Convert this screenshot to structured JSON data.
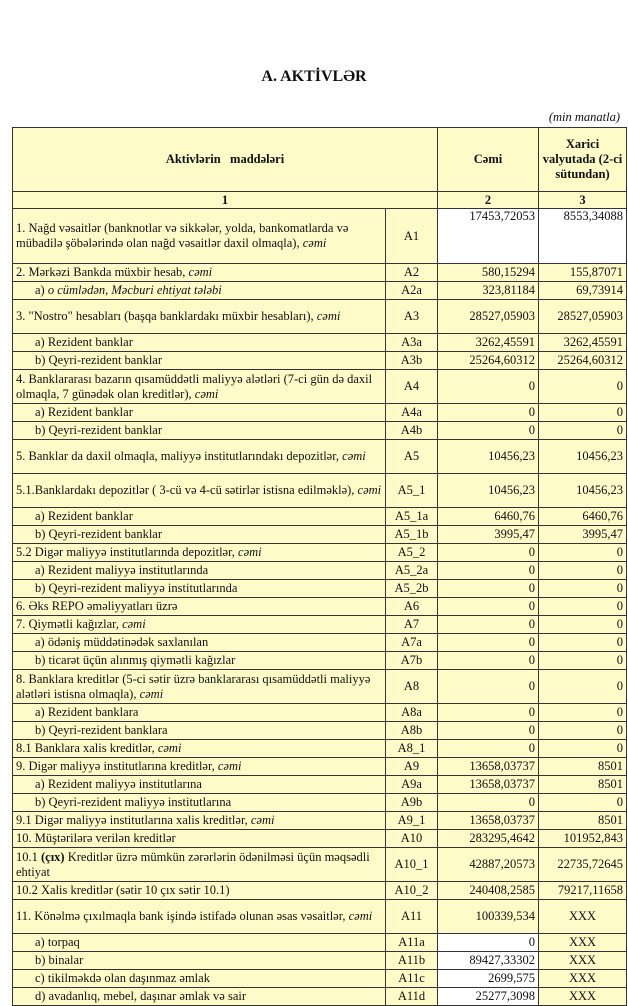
{
  "title": "A. AKTİVLƏR",
  "unit": "(min manatla)",
  "header": {
    "col1": "Aktivlərin   maddələri",
    "col2": "Cəmi",
    "col3": "Xarici valyutada (2-ci sütundan)",
    "num1": "1",
    "num2": "2",
    "num3": "3"
  },
  "rows": [
    {
      "pre": "1. Nağd vəsaitlər (banknotlar və sikkələr, yolda, bankomatlarda və mübadilə şöbələrində olan nağd vəsaitlər daxil olmaqla), ",
      "em": "cəmi",
      "code": "A1",
      "total": "17453,72053",
      "fx": "8553,34088"
    },
    {
      "pre": "2. Mərkəzi Bankda müxbir hesab, ",
      "em": "cəmi",
      "code": "A2",
      "total": "580,15294",
      "fx": "155,87071"
    },
    {
      "pre": "a) ",
      "em": "o cümlədən, Məcburi ehtiyat tələbi",
      "code": "A2a",
      "total": "323,81184",
      "fx": "69,73914",
      "sub": true
    },
    {
      "pre": "3. \"Nostro\" hesabları (başqa banklardakı müxbir hesabları), ",
      "em": "cəmi",
      "code": "A3",
      "total": "28527,05903",
      "fx": "28527,05903"
    },
    {
      "pre": "a) Rezident banklar",
      "code": "A3a",
      "total": "3262,45591",
      "fx": "3262,45591",
      "sub": true
    },
    {
      "pre": "b) Qeyri-rezident banklar",
      "code": "A3b",
      "total": "25264,60312",
      "fx": "25264,60312",
      "sub": true
    },
    {
      "pre": "4. Banklararası bazarın qısamüddətli maliyyə alətləri (7-ci gün də daxil olmaqla, 7 günədək olan kreditlər), ",
      "em": "cəmi",
      "code": "A4",
      "total": "0",
      "fx": "0"
    },
    {
      "pre": "a) Rezident banklar",
      "code": "A4a",
      "total": "0",
      "fx": "0",
      "sub": true
    },
    {
      "pre": "b) Qeyri-rezident banklar",
      "code": "A4b",
      "total": "0",
      "fx": "0",
      "sub": true
    },
    {
      "pre": "5. Banklar da daxil olmaqla, maliyyə institutlarındakı depozitlər, ",
      "em": "cəmi",
      "code": "A5",
      "total": "10456,23",
      "fx": "10456,23"
    },
    {
      "pre": "5.1.Banklardakı depozitlər ( 3-cü və 4-cü sətirlər istisna edilməklə), ",
      "em": "cəmi",
      "code": "A5_1",
      "total": "10456,23",
      "fx": "10456,23"
    },
    {
      "pre": "a) Rezident banklar",
      "code": "A5_1a",
      "total": "6460,76",
      "fx": "6460,76",
      "sub": true
    },
    {
      "pre": "b) Qeyri-rezident banklar",
      "code": "A5_1b",
      "total": "3995,47",
      "fx": "3995,47",
      "sub": true
    },
    {
      "pre": "5.2 Digər maliyyə institutlarında depozitlər, ",
      "em": "cəmi",
      "code": "A5_2",
      "total": "0",
      "fx": "0"
    },
    {
      "pre": "a) Rezident maliyyə institutlarında",
      "code": "A5_2a",
      "total": "0",
      "fx": "0",
      "sub": true
    },
    {
      "pre": "b) Qeyri-rezident maliyyə institutlarında",
      "code": "A5_2b",
      "total": "0",
      "fx": "0",
      "sub": true
    },
    {
      "pre": "6. Əks REPO əməliyyatları üzrə",
      "code": "A6",
      "total": "0",
      "fx": "0"
    },
    {
      "pre": "7. Qiymətli kağızlar, ",
      "em": "cəmi",
      "code": "A7",
      "total": "0",
      "fx": "0"
    },
    {
      "pre": "a) ödəniş müddətinədək saxlanılan",
      "code": "A7a",
      "total": "0",
      "fx": "0",
      "sub": true
    },
    {
      "pre": "b) ticarət üçün alınmış qiymətli kağızlar",
      "code": "A7b",
      "total": "0",
      "fx": "0",
      "sub": true
    },
    {
      "pre": "8. Banklara kreditlər (5-ci sətir üzrə banklararası qısamüddətli maliyyə alətləri istisna olmaqla), ",
      "em": "cəmi",
      "code": "A8",
      "total": "0",
      "fx": "0"
    },
    {
      "pre": "a) Rezident banklara",
      "code": "A8a",
      "total": "0",
      "fx": "0",
      "sub": true
    },
    {
      "pre": "b) Qeyri-rezident banklara",
      "code": "A8b",
      "total": "0",
      "fx": "0",
      "sub": true
    },
    {
      "pre": "8.1 Banklara xalis kreditlər, ",
      "em": "cəmi",
      "code": "A8_1",
      "total": "0",
      "fx": "0"
    },
    {
      "pre": "9. Digər maliyyə institutlarına kreditlər, ",
      "em": "cəmi",
      "code": "A9",
      "total": "13658,03737",
      "fx": "8501"
    },
    {
      "pre": "a) Rezident maliyyə institutlarına",
      "code": "A9a",
      "total": "13658,03737",
      "fx": "8501",
      "sub": true
    },
    {
      "pre": "b) Qeyri-rezident maliyyə institutlarına",
      "code": "A9b",
      "total": "0",
      "fx": "0",
      "sub": true
    },
    {
      "pre": "9.1 Digər maliyyə institutlarına xalis kreditlər, ",
      "em": "cəmi",
      "code": "A9_1",
      "total": "13658,03737",
      "fx": "8501"
    },
    {
      "pre": "10. Müştərilərə verilən kreditlər",
      "code": "A10",
      "total": "283295,4642",
      "fx": "101952,843"
    },
    {
      "pre": "10.1 ",
      "b": "(çıx)",
      "post": " Kreditlər üzrə mümkün zərərlərin ödənilməsi üçün məqsədli ehtiyat",
      "code": "A10_1",
      "total": "42887,20573",
      "fx": "22735,72645"
    },
    {
      "pre": "10.2 Xalis kreditlər (sətir 10 çıx sətir 10.1)",
      "code": "A10_2",
      "total": "240408,2585",
      "fx": "79217,11658"
    },
    {
      "pre": "11. Könəlmə çıxılmaqla bank işində istifadə olunan əsas vəsaitlər, ",
      "em": "cəmi",
      "code": "A11",
      "total": "100339,534",
      "fx": "XXX"
    },
    {
      "pre": "a) torpaq",
      "code": "A11a",
      "total": "0",
      "fx": "XXX",
      "sub": true
    },
    {
      "pre": "b) binalar",
      "code": "A11b",
      "total": "89427,33302",
      "fx": "XXX",
      "sub": true
    },
    {
      "pre": "c) tikilməkdə olan daşınmaz əmlak",
      "code": "A11c",
      "total": "2699,575",
      "fx": "XXX",
      "sub": true
    },
    {
      "pre": "d) avadanlıq, mebel, daşınar əmlak və sair",
      "code": "A11d",
      "total": "25277,3098",
      "fx": "XXX",
      "sub": true
    }
  ]
}
